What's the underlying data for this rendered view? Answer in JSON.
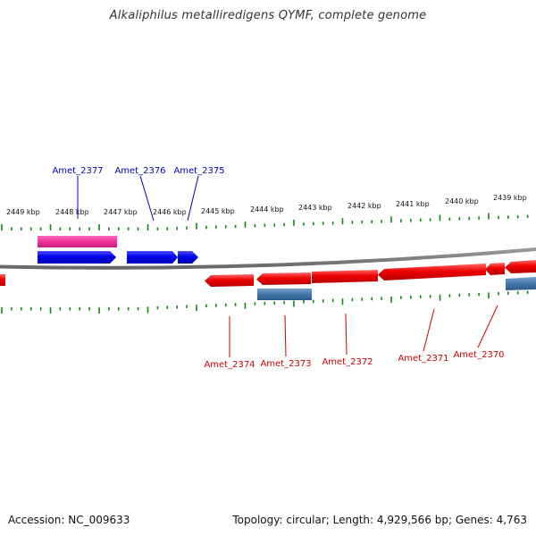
{
  "title": "Alkaliphilus metalliredigens QYMF, complete genome",
  "footer": {
    "accession": "Accession: NC_009633",
    "info": "Topology: circular; Length: 4,929,566 bp; Genes: 4,763"
  },
  "colors": {
    "backbone": "#7f7f7f",
    "tick": "#118811",
    "plus_cds": "#0000ee",
    "plus_rna": "#ee3399",
    "minus_cds": "#ee0000",
    "minus_other": "#4477aa",
    "label_plus": "#0000bb",
    "label_minus": "#cc0000"
  },
  "scale": {
    "kbp_labels": [
      "2449 kbp",
      "2448 kbp",
      "2447 kbp",
      "2446 kbp",
      "2445 kbp",
      "2444 kbp",
      "2443 kbp",
      "2442 kbp",
      "2441 kbp",
      "2440 kbp",
      "2439 kbp"
    ]
  },
  "genes": {
    "plus_strand": [
      {
        "label": "Amet_2377",
        "type": "rna"
      },
      {
        "label": "Amet_2377",
        "type": "cds"
      },
      {
        "label": "Amet_2376",
        "type": "cds"
      },
      {
        "label": "Amet_2375",
        "type": "cds"
      }
    ],
    "minus_strand": [
      {
        "label": "",
        "type": "cds"
      },
      {
        "label": "Amet_2374",
        "type": "cds"
      },
      {
        "label": "Amet_2373",
        "type": "cds"
      },
      {
        "label": "Amet_2373",
        "type": "other"
      },
      {
        "label": "Amet_2372",
        "type": "cds"
      },
      {
        "label": "Amet_2371",
        "type": "cds"
      },
      {
        "label": "Amet_2370",
        "type": "cds"
      },
      {
        "label": "",
        "type": "cds"
      },
      {
        "label": "",
        "type": "other"
      }
    ],
    "labeled": [
      "Amet_2377",
      "Amet_2376",
      "Amet_2375",
      "Amet_2374",
      "Amet_2373",
      "Amet_2372",
      "Amet_2371",
      "Amet_2370"
    ]
  }
}
